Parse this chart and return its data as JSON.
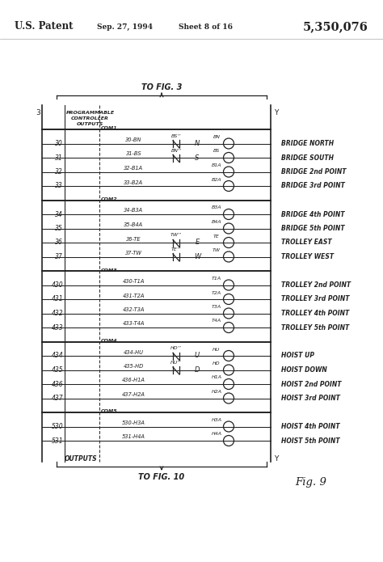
{
  "header_left": "U.S. Patent",
  "header_mid": "Sep. 27, 1994",
  "header_sheet": "Sheet 8 of 16",
  "header_patent": "5,350,076",
  "to_fig3": "TO FIG. 3",
  "to_fig10": "TO FIG. 10",
  "fig_label": "Fig. 9",
  "pc_label_lines": [
    "PROGRAMMABLE",
    "CONTROLLER",
    "OUTPUTS"
  ],
  "outputs_label": "OUTPUTS",
  "rows": [
    {
      "line_num": "COM1",
      "wire": "",
      "has_contact": false,
      "contact_lbl": "",
      "mid_lbl": "",
      "circle_label": "",
      "desc": ""
    },
    {
      "line_num": "30",
      "wire": "30-BN",
      "has_contact": true,
      "contact_lbl": "BS’’",
      "mid_lbl": "N",
      "circle_label": "BN",
      "desc": "BRIDGE NORTH"
    },
    {
      "line_num": "31",
      "wire": "31-BS",
      "has_contact": true,
      "contact_lbl": "BN’’",
      "mid_lbl": "S",
      "circle_label": "BS",
      "desc": "BRIDGE SOUTH"
    },
    {
      "line_num": "32",
      "wire": "32-B1A",
      "has_contact": false,
      "contact_lbl": "",
      "mid_lbl": "",
      "circle_label": "B1A",
      "desc": "BRIDGE 2nd POINT"
    },
    {
      "line_num": "33",
      "wire": "33-B2A",
      "has_contact": false,
      "contact_lbl": "",
      "mid_lbl": "",
      "circle_label": "B2A",
      "desc": "BRIDGE 3rd POINT"
    },
    {
      "line_num": "COM2",
      "wire": "",
      "has_contact": false,
      "contact_lbl": "",
      "mid_lbl": "",
      "circle_label": "",
      "desc": ""
    },
    {
      "line_num": "34",
      "wire": "34-B3A",
      "has_contact": false,
      "contact_lbl": "",
      "mid_lbl": "",
      "circle_label": "B3A",
      "desc": "BRIDGE 4th POINT"
    },
    {
      "line_num": "35",
      "wire": "35-B4A",
      "has_contact": false,
      "contact_lbl": "",
      "mid_lbl": "",
      "circle_label": "B4A",
      "desc": "BRIDGE 5th POINT"
    },
    {
      "line_num": "36",
      "wire": "36-TE",
      "has_contact": true,
      "contact_lbl": "TW’’",
      "mid_lbl": "E",
      "circle_label": "TE",
      "desc": "TROLLEY EAST"
    },
    {
      "line_num": "37",
      "wire": "37-TW",
      "has_contact": true,
      "contact_lbl": "TE’’",
      "mid_lbl": "W",
      "circle_label": "TW",
      "desc": "TROLLEY WEST"
    },
    {
      "line_num": "COM3",
      "wire": "",
      "has_contact": false,
      "contact_lbl": "",
      "mid_lbl": "",
      "circle_label": "",
      "desc": ""
    },
    {
      "line_num": "430",
      "wire": "430-T1A",
      "has_contact": false,
      "contact_lbl": "",
      "mid_lbl": "",
      "circle_label": "T1A",
      "desc": "TROLLEY 2nd POINT"
    },
    {
      "line_num": "431",
      "wire": "431-T2A",
      "has_contact": false,
      "contact_lbl": "",
      "mid_lbl": "",
      "circle_label": "T2A",
      "desc": "TROLLEY 3rd POINT"
    },
    {
      "line_num": "432",
      "wire": "432-T3A",
      "has_contact": false,
      "contact_lbl": "",
      "mid_lbl": "",
      "circle_label": "T3A",
      "desc": "TROLLEY 4th POINT"
    },
    {
      "line_num": "433",
      "wire": "433-T4A",
      "has_contact": false,
      "contact_lbl": "",
      "mid_lbl": "",
      "circle_label": "T4A",
      "desc": "TROLLEY 5th POINT"
    },
    {
      "line_num": "COM4",
      "wire": "",
      "has_contact": false,
      "contact_lbl": "",
      "mid_lbl": "",
      "circle_label": "",
      "desc": ""
    },
    {
      "line_num": "434",
      "wire": "434-HU",
      "has_contact": true,
      "contact_lbl": "HD’’",
      "mid_lbl": "U",
      "circle_label": "HU",
      "desc": "HOIST UP"
    },
    {
      "line_num": "435",
      "wire": "435-HD",
      "has_contact": true,
      "contact_lbl": "HU’’",
      "mid_lbl": "D",
      "circle_label": "HD",
      "desc": "HOIST DOWN"
    },
    {
      "line_num": "436",
      "wire": "436-H1A",
      "has_contact": false,
      "contact_lbl": "",
      "mid_lbl": "",
      "circle_label": "H1A",
      "desc": "HOIST 2nd POINT"
    },
    {
      "line_num": "437",
      "wire": "437-H2A",
      "has_contact": false,
      "contact_lbl": "",
      "mid_lbl": "",
      "circle_label": "H2A",
      "desc": "HOIST 3rd POINT"
    },
    {
      "line_num": "COM5",
      "wire": "",
      "has_contact": false,
      "contact_lbl": "",
      "mid_lbl": "",
      "circle_label": "",
      "desc": ""
    },
    {
      "line_num": "530",
      "wire": "530-H3A",
      "has_contact": false,
      "contact_lbl": "",
      "mid_lbl": "",
      "circle_label": "H3A",
      "desc": "HOIST 4th POINT"
    },
    {
      "line_num": "531",
      "wire": "531-H4A",
      "has_contact": false,
      "contact_lbl": "",
      "mid_lbl": "",
      "circle_label": "H4A",
      "desc": "HOIST 5th POINT"
    }
  ],
  "bg_color": "#ffffff",
  "line_color": "#222222",
  "text_color": "#222222"
}
